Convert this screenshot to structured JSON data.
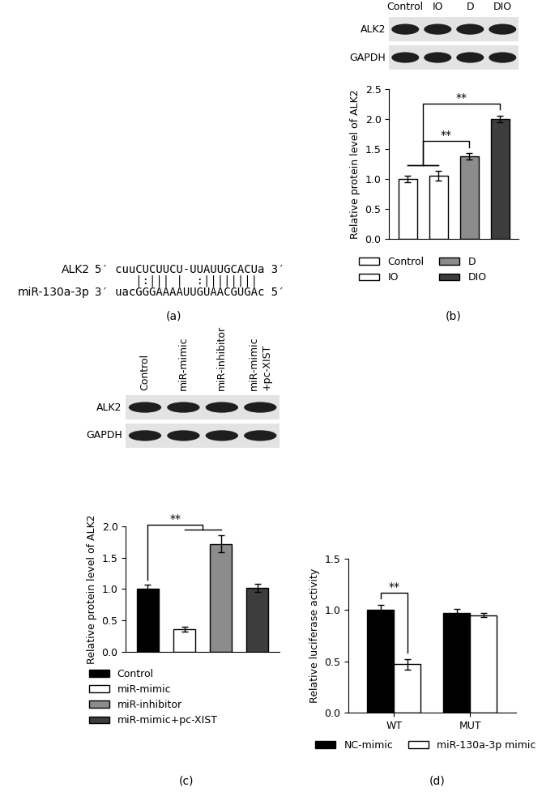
{
  "chart_data": [
    {
      "type": "bar",
      "categories": [
        "Control",
        "IO",
        "D",
        "DIO"
      ],
      "values": [
        1.0,
        1.05,
        1.38,
        2.0
      ],
      "errors": [
        0.06,
        0.08,
        0.05,
        0.06
      ],
      "colors": [
        "#ffffff",
        "#ffffff",
        "#8c8c8c",
        "#3d3d3d"
      ],
      "ylabel": "Relative protein level of ALK2",
      "ylim": [
        0,
        2.5
      ],
      "yticks": [
        {
          "value": 0,
          "label": "0.0"
        },
        {
          "value": 0.5,
          "label": "0.5"
        },
        {
          "value": 1,
          "label": "1.0"
        },
        {
          "value": 1.5,
          "label": "1.5"
        },
        {
          "value": 2,
          "label": "2.0"
        },
        {
          "value": 2.5,
          "label": "2.5"
        }
      ],
      "tick_labels": "y",
      "legend": "below",
      "annotations": [
        {
          "text": "**",
          "between": [
            [
              "Control",
              "IO"
            ],
            [
              "D"
            ]
          ]
        },
        {
          "text": "**",
          "between": [
            [
              "Control",
              "IO"
            ],
            [
              "DIO"
            ]
          ]
        }
      ]
    },
    {
      "type": "bar",
      "categories": [
        "Control",
        "miR-mimic",
        "miR-inhibitor",
        "miR-mimic+pc-XIST"
      ],
      "values": [
        1.0,
        0.36,
        1.72,
        1.02
      ],
      "errors": [
        0.07,
        0.04,
        0.14,
        0.06
      ],
      "colors": [
        "#000000",
        "#ffffff",
        "#8c8c8c",
        "#3d3d3d"
      ],
      "ylabel": "Relative protein level of ALK2",
      "ylim": [
        0,
        2
      ],
      "yticks": [
        {
          "value": 0,
          "label": "0.0"
        },
        {
          "value": 0.5,
          "label": "0.5"
        },
        {
          "value": 1,
          "label": "1.0"
        },
        {
          "value": 1.5,
          "label": "1.5"
        },
        {
          "value": 2,
          "label": "2.0"
        }
      ],
      "tick_labels": "y",
      "legend": "below",
      "annotations": [
        {
          "text": "**",
          "between": [
            [
              "Control"
            ],
            [
              "miR-mimic",
              "miR-inhibitor"
            ]
          ]
        }
      ]
    },
    {
      "type": "bar",
      "categories": [
        "WT",
        "MUT"
      ],
      "series": [
        {
          "name": "NC-mimic",
          "color": "#000000",
          "values": [
            1.0,
            0.97
          ],
          "errors": [
            0.05,
            0.04
          ]
        },
        {
          "name": "miR-130a-3p mimic",
          "color": "#ffffff",
          "values": [
            0.47,
            0.95
          ],
          "errors": [
            0.05,
            0.02
          ]
        }
      ],
      "ylabel": "Relative luciferase activity",
      "ylim": [
        0,
        1.5
      ],
      "yticks": [
        {
          "value": 0,
          "label": "0.0"
        },
        {
          "value": 0.5,
          "label": "0.5"
        },
        {
          "value": 1,
          "label": "1.0"
        },
        {
          "value": 1.5,
          "label": "1.5"
        }
      ],
      "legend": "below",
      "annotations": [
        {
          "text": "**",
          "category": "WT",
          "between": [
            [
              "NC-mimic"
            ],
            [
              "miR-130a-3p mimic"
            ]
          ]
        }
      ]
    }
  ],
  "sequence_alignment": {
    "top": {
      "name": "ALK2",
      "left": "5′",
      "seq": "cuuCUCUUCU-UUAUUGCACUa",
      "right": "3′"
    },
    "pairs": "   |:||| |  :||||||||",
    "bottom": {
      "name": "miR-130a-3p",
      "left": "3′",
      "seq": "uacGGGAAAAUUGUAACGUGAc",
      "right": "5′"
    }
  },
  "blots": [
    {
      "rows": [
        "ALK2",
        "GAPDH"
      ],
      "lanes": [
        "Control",
        "IO",
        "D",
        "DIO"
      ]
    },
    {
      "rows": [
        "ALK2",
        "GAPDH"
      ],
      "lanes": [
        "Control",
        "miR-mimic",
        "miR-inhibitor",
        "miR-mimic\n+pc-XIST"
      ]
    }
  ],
  "panel_labels": [
    "(a)",
    "(b)",
    "(c)",
    "(d)"
  ]
}
